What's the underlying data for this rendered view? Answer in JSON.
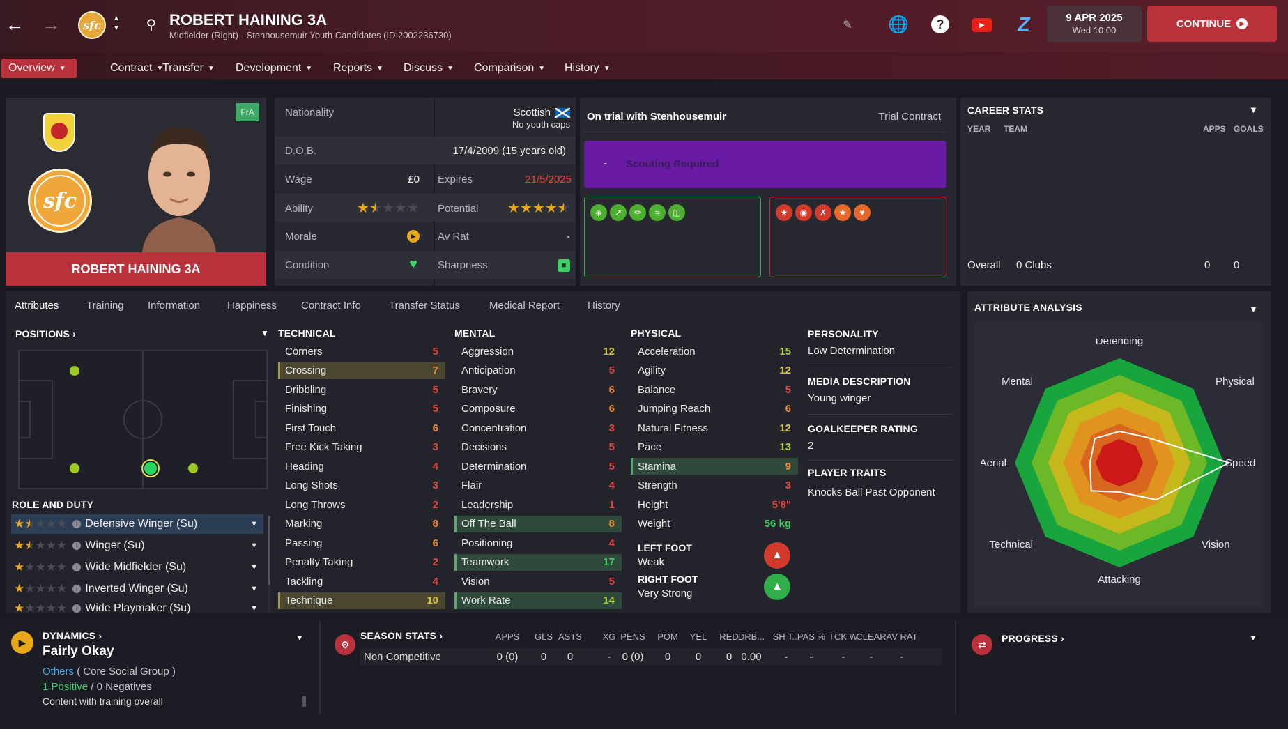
{
  "header": {
    "player_name": "ROBERT HAINING 3A",
    "subtitle": "Midfielder (Right) - Stenhousemuir Youth Candidates (ID:2002236730)",
    "date": "9 APR 2025",
    "time": "Wed 10:00",
    "continue_label": "CONTINUE",
    "club_badge_text": "sfc"
  },
  "nav": {
    "items": [
      "Overview",
      "Contract",
      "Transfer",
      "Development",
      "Reports",
      "Discuss",
      "Comparison",
      "History"
    ]
  },
  "profile": {
    "name": "ROBERT HAINING 3A",
    "badge": "FrA",
    "crest_text": "sfc"
  },
  "info": {
    "nationality_label": "Nationality",
    "nationality": "Scottish",
    "caps": "No youth caps",
    "dob_label": "D.O.B.",
    "dob": "17/4/2009 (15 years old)",
    "wage_label": "Wage",
    "wage": "£0",
    "expires_label": "Expires",
    "expires": "21/5/2025",
    "ability_label": "Ability",
    "potential_label": "Potential",
    "morale_label": "Morale",
    "avrat_label": "Av Rat",
    "avrat": "-",
    "condition_label": "Condition",
    "sharpness_label": "Sharpness",
    "ability_stars": 1.5,
    "potential_stars": 4.5
  },
  "trial": {
    "title": "On trial with Stenhousemuir",
    "contract": "Trial Contract",
    "dash": "-",
    "scouting": "Scouting Required"
  },
  "career": {
    "title": "CAREER STATS",
    "col_year": "YEAR",
    "col_team": "TEAM",
    "col_apps": "APPS",
    "col_goals": "GOALS",
    "overall": "Overall",
    "clubs": "0 Clubs",
    "apps": "0",
    "goals": "0"
  },
  "subtabs": [
    "Attributes",
    "Training",
    "Information",
    "Happiness",
    "Contract Info",
    "Transfer Status",
    "Medical Report",
    "History"
  ],
  "positions": {
    "title": "POSITIONS",
    "role_title": "ROLE AND DUTY",
    "roles": [
      {
        "name": "Defensive Winger (Su)",
        "stars": 1.5
      },
      {
        "name": "Winger (Su)",
        "stars": 1.5
      },
      {
        "name": "Wide Midfielder (Su)",
        "stars": 1
      },
      {
        "name": "Inverted Winger (Su)",
        "stars": 1
      },
      {
        "name": "Wide Playmaker (Su)",
        "stars": 1
      }
    ]
  },
  "technical": {
    "title": "TECHNICAL",
    "rows": [
      {
        "name": "Corners",
        "value": "5"
      },
      {
        "name": "Crossing",
        "value": "7"
      },
      {
        "name": "Dribbling",
        "value": "5"
      },
      {
        "name": "Finishing",
        "value": "5"
      },
      {
        "name": "First Touch",
        "value": "6"
      },
      {
        "name": "Free Kick Taking",
        "value": "3"
      },
      {
        "name": "Heading",
        "value": "4"
      },
      {
        "name": "Long Shots",
        "value": "3"
      },
      {
        "name": "Long Throws",
        "value": "2"
      },
      {
        "name": "Marking",
        "value": "8"
      },
      {
        "name": "Passing",
        "value": "6"
      },
      {
        "name": "Penalty Taking",
        "value": "2"
      },
      {
        "name": "Tackling",
        "value": "4"
      },
      {
        "name": "Technique",
        "value": "10"
      }
    ]
  },
  "mental": {
    "title": "MENTAL",
    "rows": [
      {
        "name": "Aggression",
        "value": "12"
      },
      {
        "name": "Anticipation",
        "value": "5"
      },
      {
        "name": "Bravery",
        "value": "6"
      },
      {
        "name": "Composure",
        "value": "6"
      },
      {
        "name": "Concentration",
        "value": "3"
      },
      {
        "name": "Decisions",
        "value": "5"
      },
      {
        "name": "Determination",
        "value": "5"
      },
      {
        "name": "Flair",
        "value": "4"
      },
      {
        "name": "Leadership",
        "value": "1"
      },
      {
        "name": "Off The Ball",
        "value": "8"
      },
      {
        "name": "Positioning",
        "value": "4"
      },
      {
        "name": "Teamwork",
        "value": "17"
      },
      {
        "name": "Vision",
        "value": "5"
      },
      {
        "name": "Work Rate",
        "value": "14"
      }
    ]
  },
  "physical": {
    "title": "PHYSICAL",
    "rows": [
      {
        "name": "Acceleration",
        "value": "15"
      },
      {
        "name": "Agility",
        "value": "12"
      },
      {
        "name": "Balance",
        "value": "5"
      },
      {
        "name": "Jumping Reach",
        "value": "6"
      },
      {
        "name": "Natural Fitness",
        "value": "12"
      },
      {
        "name": "Pace",
        "value": "13"
      },
      {
        "name": "Stamina",
        "value": "9"
      },
      {
        "name": "Strength",
        "value": "3"
      },
      {
        "name": "Height",
        "value": "5'8\""
      },
      {
        "name": "Weight",
        "value": "56 kg"
      }
    ],
    "left_foot_label": "LEFT FOOT",
    "left_foot": "Weak",
    "right_foot_label": "RIGHT FOOT",
    "right_foot": "Very Strong"
  },
  "personality": {
    "title": "PERSONALITY",
    "value": "Low Determination",
    "media_title": "MEDIA DESCRIPTION",
    "media": "Young winger",
    "gk_title": "GOALKEEPER RATING",
    "gk": "2",
    "traits_title": "PLAYER TRAITS",
    "traits": "Knocks Ball Past Opponent"
  },
  "analysis": {
    "title": "ATTRIBUTE ANALYSIS",
    "labels": [
      "Defending",
      "Physical",
      "Speed",
      "Vision",
      "Attacking",
      "Technical",
      "Aerial",
      "Mental"
    ]
  },
  "dynamics": {
    "title": "DYNAMICS",
    "value": "Fairly Okay",
    "group": "Others",
    "group_suffix": "( Core Social Group )",
    "positive": "1 Positive",
    "sep": "/",
    "negative": "0 Negatives",
    "note": "Content with training overall"
  },
  "season": {
    "title": "SEASON STATS",
    "headers": [
      "APPS",
      "GLS",
      "ASTS",
      "XG",
      "PENS",
      "POM",
      "YEL",
      "RED",
      "DRB...",
      "SH T...",
      "PAS %",
      "TCK W",
      "CLEAR",
      "AV RAT"
    ],
    "row_label": "Non Competitive",
    "values": [
      "0 (0)",
      "0",
      "0",
      "-",
      "0 (0)",
      "0",
      "0",
      "0",
      "0.00",
      "-",
      "-",
      "-",
      "-",
      "-"
    ]
  },
  "progress": {
    "title": "PROGRESS"
  },
  "colors": {
    "accent": "#b8313b",
    "scouting": "#6a1ba3",
    "good_box": "#2fae4a",
    "bad_box": "#c82a2a"
  }
}
